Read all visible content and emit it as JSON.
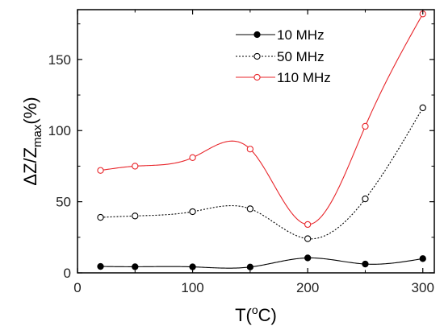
{
  "chart_data": {
    "type": "line",
    "title": "",
    "xlabel": {
      "base": "T(",
      "sup": "o",
      "tail": "C)"
    },
    "ylabel": {
      "base": "ΔZ/Z",
      "sub": "max",
      "tail": "(%)"
    },
    "xlim": [
      0,
      310
    ],
    "ylim": [
      0,
      185
    ],
    "xticks": [
      0,
      100,
      200,
      300
    ],
    "yticks": [
      0,
      50,
      100,
      150
    ],
    "grid": false,
    "legend": "top-right",
    "series": [
      {
        "name": "10 MHz",
        "color": "#000000",
        "line_style": "solid",
        "marker": "filled-circle",
        "x": [
          20,
          50,
          100,
          150,
          200,
          250,
          300
        ],
        "y": [
          4.5,
          4.3,
          4.2,
          4.1,
          10.5,
          6.2,
          10
        ]
      },
      {
        "name": "50 MHz",
        "color": "#000000",
        "line_style": "dotted",
        "marker": "open-circle",
        "x": [
          20,
          50,
          100,
          150,
          200,
          250,
          300
        ],
        "y": [
          39,
          40,
          43,
          45,
          24,
          52,
          116
        ]
      },
      {
        "name": "110 MHz",
        "color": "#e8262b",
        "line_style": "solid",
        "marker": "open-circle",
        "x": [
          20,
          50,
          100,
          150,
          200,
          250,
          300
        ],
        "y": [
          72,
          75,
          81,
          87,
          34,
          103,
          182
        ]
      }
    ]
  }
}
